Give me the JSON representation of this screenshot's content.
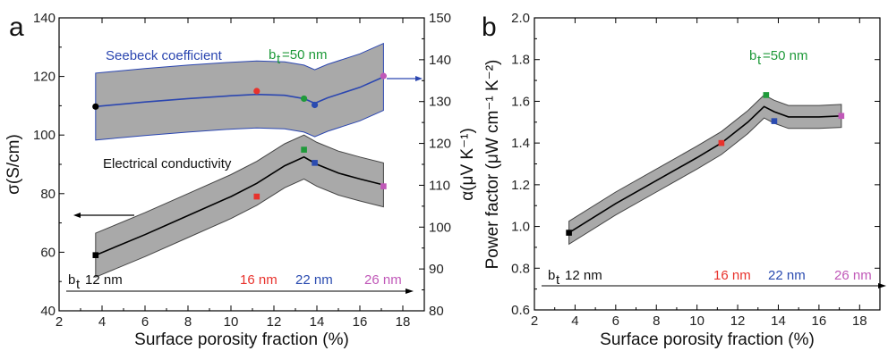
{
  "chart_data": [
    {
      "panel": "a",
      "type": "line",
      "xlabel": "Surface porosity fraction (%)",
      "ylabel_left": "σ(S/cm)",
      "ylabel_right": "α(μV K⁻¹)",
      "xlim": [
        2,
        19
      ],
      "xticks": [
        "2",
        "4",
        "6",
        "8",
        "10",
        "12",
        "14",
        "16",
        "18"
      ],
      "ylim_left": [
        40,
        140
      ],
      "yticks_left": [
        "40",
        "60",
        "80",
        "100",
        "120",
        "140"
      ],
      "ylim_right": [
        80,
        150
      ],
      "yticks_right": [
        "80",
        "90",
        "100",
        "110",
        "120",
        "130",
        "140",
        "150"
      ],
      "grid": false,
      "series": [
        {
          "name": "Seebeck coefficient",
          "axis": "right",
          "color": "#2b46b0",
          "band": true,
          "curve_x": [
            3.7,
            6,
            8,
            10,
            11.2,
            12.5,
            13.4,
            13.9,
            14.5,
            16,
            17.1
          ],
          "curve_y": [
            128.8,
            129.9,
            130.7,
            131.4,
            131.7,
            131.5,
            130.7,
            129.6,
            130.9,
            133.4,
            135.9
          ],
          "band_halfwidth": 8,
          "points": [
            {
              "x": 3.7,
              "y": 128.8,
              "color": "#000000",
              "label": "12 nm"
            },
            {
              "x": 11.2,
              "y": 132.5,
              "color": "#e8322c",
              "label": "16 nm"
            },
            {
              "x": 13.4,
              "y": 130.7,
              "color": "#1f9a3a",
              "label": "bt=50 nm"
            },
            {
              "x": 13.9,
              "y": 129.2,
              "color": "#2a4bb0",
              "label": "22 nm"
            },
            {
              "x": 17.1,
              "y": 136.1,
              "color": "#c058b8",
              "label": "26 nm"
            }
          ]
        },
        {
          "name": "Electrical conductivity",
          "axis": "left",
          "color": "#000000",
          "band": true,
          "curve_x": [
            3.7,
            6,
            8,
            10,
            11.2,
            12.5,
            13.4,
            14,
            15,
            16,
            17.1
          ],
          "curve_y": [
            59,
            66,
            72.5,
            79,
            83.5,
            89.5,
            92.5,
            90,
            87,
            85,
            83
          ],
          "band_halfwidth": 7.5,
          "points": [
            {
              "x": 3.7,
              "y": 59,
              "color": "#000000",
              "label": "12 nm"
            },
            {
              "x": 11.2,
              "y": 79,
              "color": "#e8322c",
              "label": "16 nm"
            },
            {
              "x": 13.4,
              "y": 95,
              "color": "#1f9a3a",
              "label": "bt=50 nm"
            },
            {
              "x": 13.9,
              "y": 90.5,
              "color": "#2a4bb0",
              "label": "22 nm"
            },
            {
              "x": 17.1,
              "y": 82.5,
              "color": "#c058b8",
              "label": "26 nm"
            }
          ]
        }
      ]
    },
    {
      "panel": "b",
      "type": "line",
      "xlabel": "Surface porosity fraction (%)",
      "ylabel": "Power factor (μW cm⁻¹ K⁻²)",
      "xlim": [
        2,
        19
      ],
      "xticks": [
        "2",
        "4",
        "6",
        "8",
        "10",
        "12",
        "14",
        "16",
        "18"
      ],
      "ylim": [
        0.6,
        2.0
      ],
      "yticks": [
        "0.6",
        "0.8",
        "1.0",
        "1.2",
        "1.4",
        "1.6",
        "1.8",
        "2.0"
      ],
      "grid": false,
      "series": [
        {
          "name": "Power factor",
          "color": "#000000",
          "band": true,
          "curve_x": [
            3.7,
            6,
            8,
            10,
            11.2,
            12.5,
            13.3,
            13.8,
            14.5,
            16,
            17.1
          ],
          "curve_y": [
            0.97,
            1.11,
            1.22,
            1.33,
            1.4,
            1.5,
            1.575,
            1.55,
            1.525,
            1.525,
            1.53
          ],
          "band_halfwidth": 0.055,
          "points": [
            {
              "x": 3.7,
              "y": 0.97,
              "color": "#000000",
              "label": "12 nm"
            },
            {
              "x": 11.2,
              "y": 1.4,
              "color": "#e8322c",
              "label": "16 nm"
            },
            {
              "x": 13.4,
              "y": 1.63,
              "color": "#1f9a3a",
              "label": "bt=50 nm"
            },
            {
              "x": 13.8,
              "y": 1.505,
              "color": "#2a4bb0",
              "label": "22 nm"
            },
            {
              "x": 17.1,
              "y": 1.53,
              "color": "#c058b8",
              "label": "26 nm"
            }
          ]
        }
      ]
    }
  ],
  "text": {
    "panel_a": "a",
    "panel_b": "b",
    "seebeck_label": "Seebeck coefficient",
    "conductivity_label": "Electrical conductivity",
    "bt_a": "b",
    "bt_sub_a": "t",
    "bt50_a": "=50 nm",
    "bt_b": "b",
    "bt_sub_b": "t",
    "bt50_b": "=50 nm",
    "thick_12_a": "12 nm",
    "thick_16_a": "16 nm",
    "thick_22_a": "22 nm",
    "thick_26_a": "26 nm",
    "thick_12_b": "12 nm",
    "thick_16_b": "16 nm",
    "thick_22_b": "22 nm",
    "thick_26_b": "26 nm"
  },
  "colors": {
    "band": "#a9a9a9",
    "seebeck": "#2b46b0",
    "green": "#1f9a3a",
    "red": "#e8322c",
    "blue": "#2a4bb0",
    "magenta": "#c058b8"
  }
}
